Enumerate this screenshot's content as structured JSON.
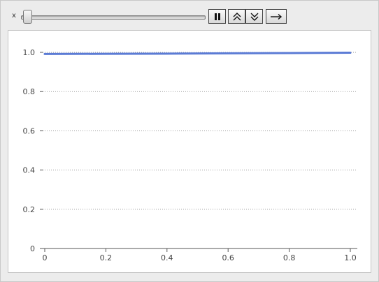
{
  "controls": {
    "slider_label": "x",
    "slider_value": 0.0,
    "buttons": [
      {
        "name": "pause",
        "icon": "pause-icon"
      },
      {
        "name": "faster",
        "icon": "double-chevron-up-icon"
      },
      {
        "name": "slower",
        "icon": "double-chevron-down-icon"
      },
      {
        "name": "direction",
        "icon": "arrow-right-icon"
      }
    ]
  },
  "chart_data": {
    "type": "line",
    "title": "",
    "xlabel": "",
    "ylabel": "",
    "xlim": [
      0,
      1
    ],
    "ylim": [
      0,
      1.0
    ],
    "x_ticks": [
      "0",
      "0.2",
      "0.4",
      "0.6",
      "0.8",
      "1.0"
    ],
    "y_ticks": [
      "0",
      "0.2",
      "0.4",
      "0.6",
      "0.8",
      "1.0"
    ],
    "grid": "horizontal-dotted",
    "series": [
      {
        "color": "#5b7bd5",
        "x": [
          0,
          0.2,
          0.4,
          0.6,
          0.8,
          1.0
        ],
        "y": [
          0.9915,
          0.9925,
          0.9935,
          0.995,
          0.9965,
          0.998
        ]
      }
    ]
  }
}
